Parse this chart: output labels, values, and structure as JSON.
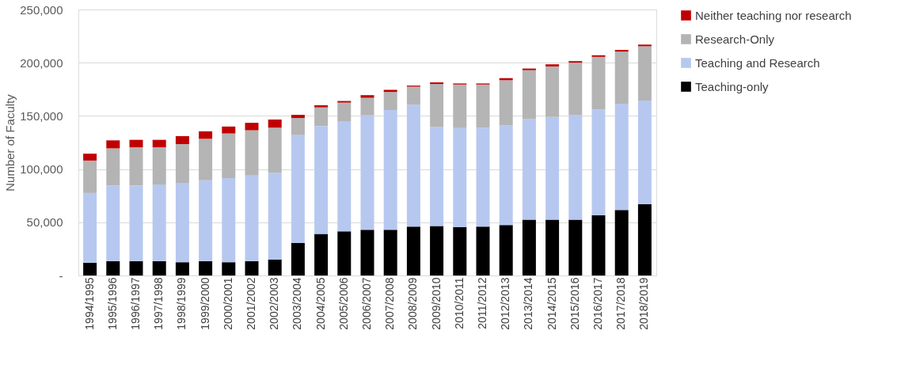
{
  "chart_data": {
    "type": "bar",
    "stacked": true,
    "ylabel": "Number of Faculty",
    "categories": [
      "1994/1995",
      "1995/1996",
      "1996/1997",
      "1997/1998",
      "1998/1999",
      "1999/2000",
      "2000/2001",
      "2001/2002",
      "2002/2003",
      "2003/2004",
      "2004/2005",
      "2005/2006",
      "2006/2007",
      "2007/2008",
      "2008/2009",
      "2009/2010",
      "2010/2011",
      "2011/2012",
      "2012/2013",
      "2013/2014",
      "2014/2015",
      "2015/2016",
      "2016/2017",
      "2017/2018",
      "2018/2019"
    ],
    "series": [
      {
        "name": "Teaching-only",
        "color": "#000000",
        "values": [
          12000,
          13500,
          13500,
          13500,
          12500,
          13500,
          12500,
          13500,
          15000,
          30500,
          39000,
          41500,
          43000,
          43000,
          46000,
          46500,
          45500,
          46000,
          47500,
          52500,
          52500,
          52500,
          56500,
          61500,
          67000
        ]
      },
      {
        "name": "Teaching and Research",
        "color": "#b7c8f0",
        "values": [
          65500,
          71000,
          71000,
          72000,
          74500,
          76000,
          79000,
          80500,
          81500,
          101500,
          101500,
          103500,
          107500,
          112500,
          114500,
          93000,
          93000,
          93000,
          93500,
          94500,
          96500,
          98500,
          99500,
          100000,
          97500
        ]
      },
      {
        "name": "Research-Only",
        "color": "#b4b4b4",
        "values": [
          30500,
          35000,
          36000,
          35000,
          36500,
          39000,
          42000,
          42500,
          42500,
          16000,
          17500,
          17500,
          16500,
          17000,
          17000,
          40500,
          41000,
          40500,
          42500,
          46000,
          47500,
          49000,
          49500,
          49000,
          51000
        ]
      },
      {
        "name": "Neither teaching nor research",
        "color": "#c00000",
        "values": [
          6500,
          7500,
          7000,
          7000,
          7500,
          7000,
          6500,
          7000,
          7500,
          3000,
          2000,
          1500,
          2500,
          2000,
          1000,
          1500,
          1000,
          1000,
          2000,
          1500,
          2000,
          1500,
          1500,
          1500,
          1500
        ]
      }
    ],
    "ylim": [
      0,
      250000
    ],
    "yticks": [
      {
        "value": 0,
        "label": "-"
      },
      {
        "value": 50000,
        "label": "50,000"
      },
      {
        "value": 100000,
        "label": "100,000"
      },
      {
        "value": 150000,
        "label": "150,000"
      },
      {
        "value": 200000,
        "label": "200,000"
      },
      {
        "value": 250000,
        "label": "250,000"
      }
    ],
    "grid": "y",
    "legend": "right"
  }
}
